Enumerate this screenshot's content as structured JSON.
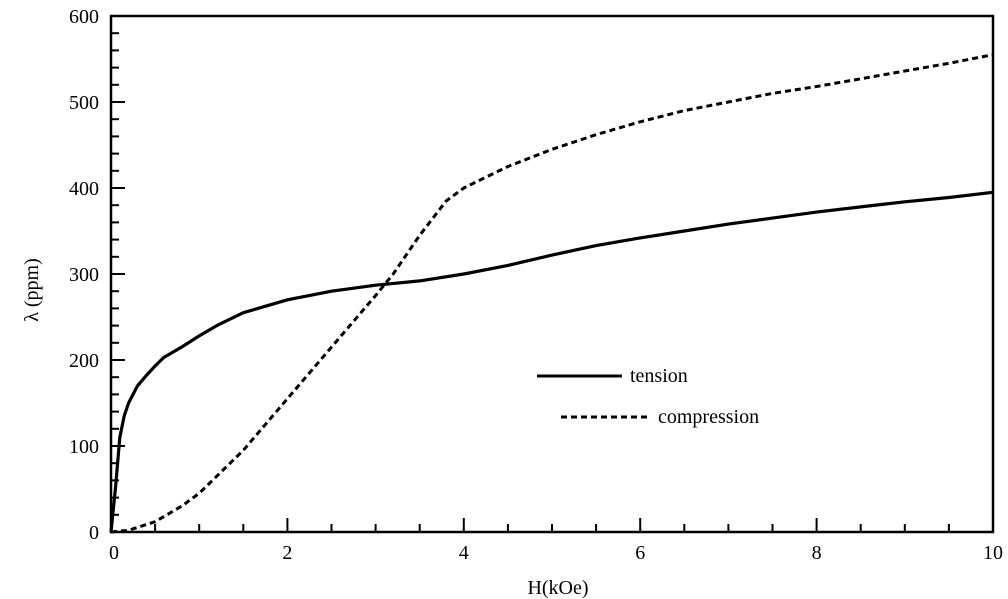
{
  "chart_data": {
    "type": "line",
    "title": "",
    "xlabel": "H(kOe)",
    "ylabel": "λ  (ppm)",
    "xlim": [
      0,
      10
    ],
    "ylim": [
      0,
      600
    ],
    "x_ticks": [
      0,
      2,
      4,
      6,
      8,
      10
    ],
    "y_ticks": [
      0,
      100,
      200,
      300,
      400,
      500,
      600
    ],
    "grid": false,
    "legend_position": "center-right",
    "series": [
      {
        "name": "tension",
        "style": "solid",
        "x": [
          0,
          0.05,
          0.1,
          0.15,
          0.2,
          0.3,
          0.4,
          0.5,
          0.6,
          0.8,
          1.0,
          1.2,
          1.5,
          2.0,
          2.5,
          3.0,
          3.5,
          4.0,
          4.5,
          5.0,
          5.5,
          6.0,
          6.5,
          7.0,
          7.5,
          8.0,
          8.5,
          9.0,
          9.5,
          10.0
        ],
        "y": [
          0,
          50,
          110,
          135,
          150,
          170,
          182,
          193,
          203,
          215,
          228,
          240,
          255,
          270,
          280,
          287,
          292,
          300,
          310,
          322,
          333,
          342,
          350,
          358,
          365,
          372,
          378,
          384,
          389,
          395
        ]
      },
      {
        "name": "compression",
        "style": "dashed",
        "x": [
          0,
          0.2,
          0.5,
          0.8,
          1.0,
          1.5,
          2.0,
          2.5,
          3.0,
          3.2,
          3.5,
          3.8,
          4.0,
          4.5,
          5.0,
          5.5,
          6.0,
          6.5,
          7.0,
          7.5,
          8.0,
          8.5,
          9.0,
          9.5,
          10.0
        ],
        "y": [
          0,
          2,
          12,
          30,
          45,
          95,
          155,
          215,
          275,
          300,
          345,
          385,
          400,
          425,
          445,
          462,
          477,
          490,
          500,
          510,
          518,
          527,
          536,
          545,
          555
        ]
      }
    ]
  }
}
